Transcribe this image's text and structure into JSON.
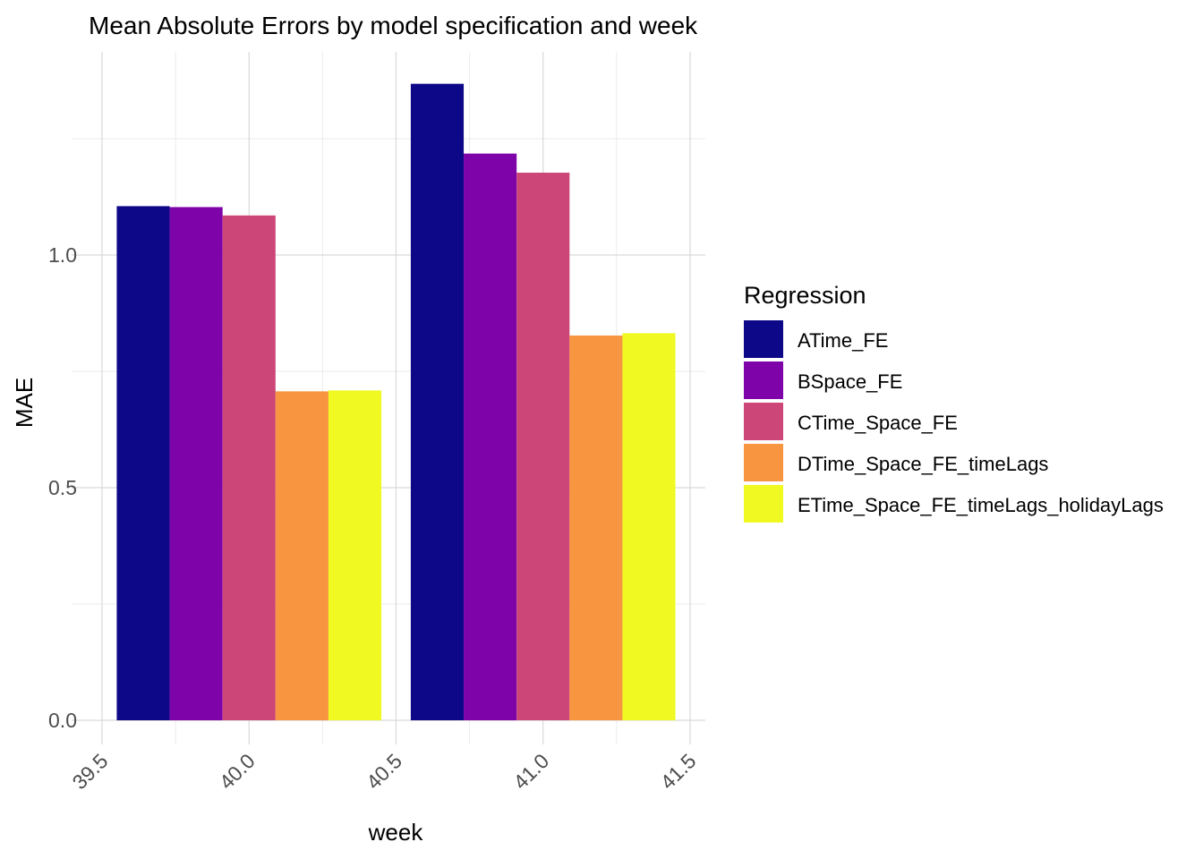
{
  "chart_data": {
    "type": "bar",
    "title": "Mean Absolute Errors by model specification and week",
    "xlabel": "week",
    "ylabel": "MAE",
    "xlim": [
      39.45,
      41.5
    ],
    "ylim": [
      0,
      1.37
    ],
    "x_ticks": [
      "39.5",
      "40.0",
      "40.5",
      "41.0",
      "41.5"
    ],
    "x_tick_values": [
      39.5,
      40.0,
      40.5,
      41.0,
      41.5
    ],
    "y_ticks": [
      "0.0",
      "0.5",
      "1.0"
    ],
    "y_tick_values": [
      0.0,
      0.5,
      1.0
    ],
    "categories": [
      40,
      41
    ],
    "grid": true,
    "legend_position": "right",
    "legend_title": "Regression",
    "series": [
      {
        "name": "ATime_FE",
        "color": "#0d0887",
        "values": [
          1.105,
          1.368
        ]
      },
      {
        "name": "BSpace_FE",
        "color": "#7e03a8",
        "values": [
          1.103,
          1.218
        ]
      },
      {
        "name": "CTime_Space_FE",
        "color": "#cc4778",
        "values": [
          1.085,
          1.177
        ]
      },
      {
        "name": "DTime_Space_FE_timeLags",
        "color": "#f89540",
        "values": [
          0.707,
          0.827
        ]
      },
      {
        "name": "ETime_Space_FE_timeLags_holidayLags",
        "color": "#f0f921",
        "values": [
          0.709,
          0.832
        ]
      }
    ]
  }
}
